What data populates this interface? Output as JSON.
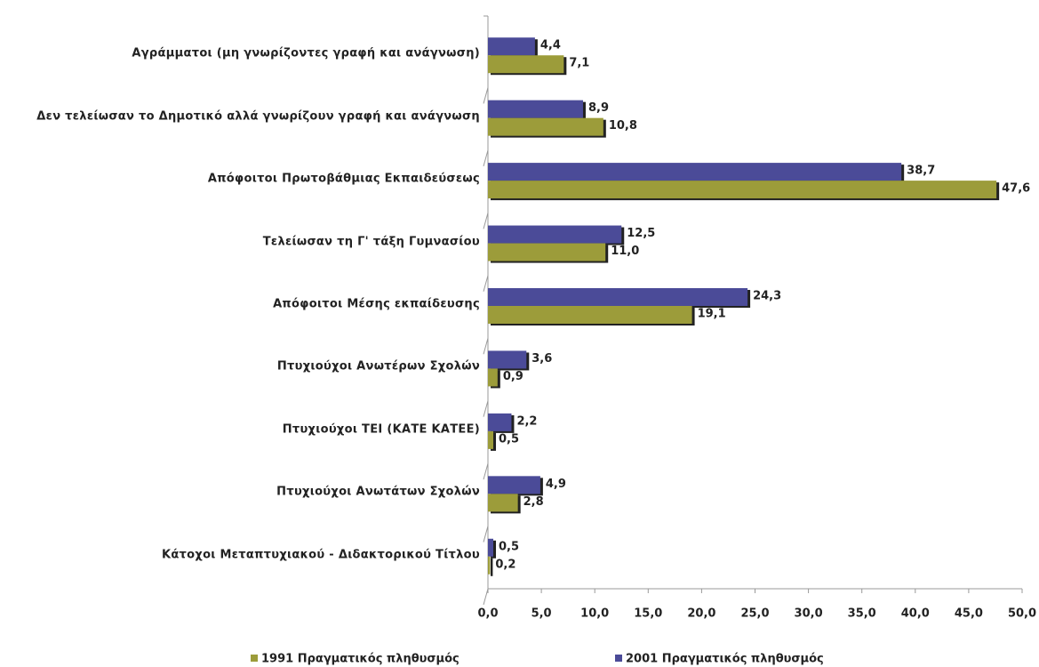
{
  "chart_data": {
    "type": "bar",
    "orientation": "horizontal",
    "categories": [
      "Αγράμματοι (μη γνωρίζοντες γραφή και ανάγνωση)",
      "Δεν τελείωσαν το Δημοτικό αλλά γνωρίζουν γραφή και ανάγνωση",
      "Απόφοιτοι Πρωτοβάθμιας Εκπαιδεύσεως",
      "Τελείωσαν τη Γ' τάξη Γυμνασίου",
      "Απόφοιτοι Μέσης εκπαίδευσης",
      "Πτυχιούχοι Ανωτέρων Σχολών",
      "Πτυχιούχοι ΤΕΙ (ΚΑΤΕ ΚΑΤΕΕ)",
      "Πτυχιούχοι Ανωτάτων Σχολών",
      "Κάτοχοι Μεταπτυχιακού - Διδακτορικού Τίτλου"
    ],
    "series": [
      {
        "name": "1991 Πραγματικός πληθυσμός",
        "color": "#9c9c3a",
        "values": [
          7.1,
          10.8,
          47.6,
          11.0,
          19.1,
          0.9,
          0.5,
          2.8,
          0.2
        ],
        "value_labels": [
          "7,1",
          "10,8",
          "47,6",
          "11,0",
          "19,1",
          "0,9",
          "0,5",
          "2,8",
          "0,2"
        ]
      },
      {
        "name": "2001 Πραγματικός πληθυσμός",
        "color": "#4b4b98",
        "values": [
          4.4,
          8.9,
          38.7,
          12.5,
          24.3,
          3.6,
          2.2,
          4.9,
          0.5
        ],
        "value_labels": [
          "4,4",
          "8,9",
          "38,7",
          "12,5",
          "24,3",
          "3,6",
          "2,2",
          "4,9",
          "0,5"
        ]
      }
    ],
    "xlim": [
      0,
      50
    ],
    "xticks": [
      {
        "value": 0,
        "label": "0,0"
      },
      {
        "value": 5,
        "label": "5,0"
      },
      {
        "value": 10,
        "label": "10,0"
      },
      {
        "value": 15,
        "label": "15,0"
      },
      {
        "value": 20,
        "label": "20,0"
      },
      {
        "value": 25,
        "label": "25,0"
      },
      {
        "value": 30,
        "label": "30,0"
      },
      {
        "value": 35,
        "label": "35,0"
      },
      {
        "value": 40,
        "label": "40,0"
      },
      {
        "value": 45,
        "label": "45,0"
      },
      {
        "value": 50,
        "label": "50,0"
      }
    ],
    "grid": false,
    "legend": "bottom"
  }
}
